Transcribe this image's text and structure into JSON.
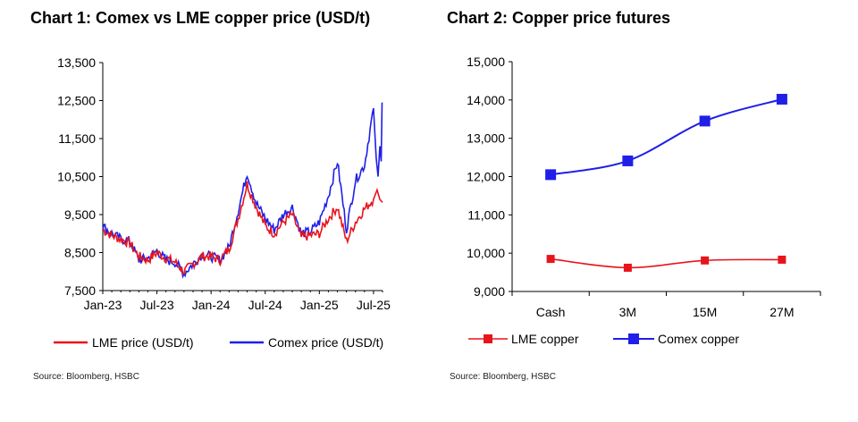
{
  "charts": [
    {
      "title": "Chart 1: Comex vs LME copper price (USD/t)",
      "source": "Source: Bloomberg, HSBC"
    },
    {
      "title": "Chart 2: Copper price futures",
      "source": "Source: Bloomberg, HSBC"
    }
  ],
  "colors": {
    "lme": "#e8141c",
    "comex": "#1f1fe8",
    "axis": "#000000"
  },
  "chart_data": [
    {
      "type": "line",
      "title": "Chart 1: Comex vs LME copper price (USD/t)",
      "xlabel": "",
      "ylabel": "",
      "x_tick_labels": [
        "Jan-23",
        "Jul-23",
        "Jan-24",
        "Jul-24",
        "Jan-25",
        "Jul-25"
      ],
      "y_ticks": [
        7500,
        8500,
        9500,
        10500,
        11500,
        12500,
        13500
      ],
      "y_tick_labels": [
        "7,500",
        "8,500",
        "9,500",
        "10,500",
        "11,500",
        "12,500",
        "13,500"
      ],
      "ylim": [
        7500,
        13500
      ],
      "xlim": [
        "Jan-23",
        "Aug-25"
      ],
      "grid": false,
      "legend_position": "bottom",
      "x": [
        "Jan-23",
        "Feb-23",
        "Mar-23",
        "Apr-23",
        "May-23",
        "Jun-23",
        "Jul-23",
        "Aug-23",
        "Sep-23",
        "Oct-23",
        "Nov-23",
        "Dec-23",
        "Jan-24",
        "Feb-24",
        "Mar-24",
        "Apr-24",
        "May-24",
        "Jun-24",
        "Jul-24",
        "Aug-24",
        "Sep-24",
        "Oct-24",
        "Nov-24",
        "Dec-24",
        "Jan-25",
        "Feb-25",
        "Mar-25",
        "Apr-25",
        "May-25",
        "Jun-25",
        "Jul-25"
      ],
      "series": [
        {
          "name": "LME price (USD/t)",
          "color": "#e8141c",
          "values": [
            9100,
            8950,
            8850,
            8750,
            8400,
            8300,
            8500,
            8350,
            8250,
            8000,
            8200,
            8400,
            8400,
            8300,
            8600,
            9400,
            10300,
            9700,
            9200,
            9000,
            9300,
            9500,
            8900,
            8950,
            9000,
            9400,
            9700,
            8800,
            9300,
            9650,
            9900
          ]
        },
        {
          "name": "Comex price (USD/t)",
          "color": "#1f1fe8",
          "values": [
            9200,
            9000,
            8850,
            8800,
            8300,
            8350,
            8550,
            8300,
            8250,
            7950,
            8200,
            8450,
            8400,
            8300,
            8650,
            9600,
            10600,
            9800,
            9400,
            9100,
            9500,
            9700,
            9000,
            9050,
            9300,
            10000,
            10900,
            9100,
            10400,
            10800,
            12300
          ]
        }
      ]
    },
    {
      "type": "line",
      "title": "Chart 2: Copper price futures",
      "xlabel": "",
      "ylabel": "",
      "categories": [
        "Cash",
        "3M",
        "15M",
        "27M"
      ],
      "y_ticks": [
        9000,
        10000,
        11000,
        12000,
        13000,
        14000,
        15000
      ],
      "y_tick_labels": [
        "9,000",
        "10,000",
        "11,000",
        "12,000",
        "13,000",
        "14,000",
        "15,000"
      ],
      "ylim": [
        9000,
        15000
      ],
      "grid": false,
      "legend_position": "bottom",
      "series": [
        {
          "name": "LME copper",
          "color": "#e8141c",
          "values": [
            9850,
            9620,
            9810,
            9830
          ]
        },
        {
          "name": "Comex copper",
          "color": "#1f1fe8",
          "values": [
            12050,
            12410,
            13450,
            14020
          ]
        }
      ]
    }
  ]
}
